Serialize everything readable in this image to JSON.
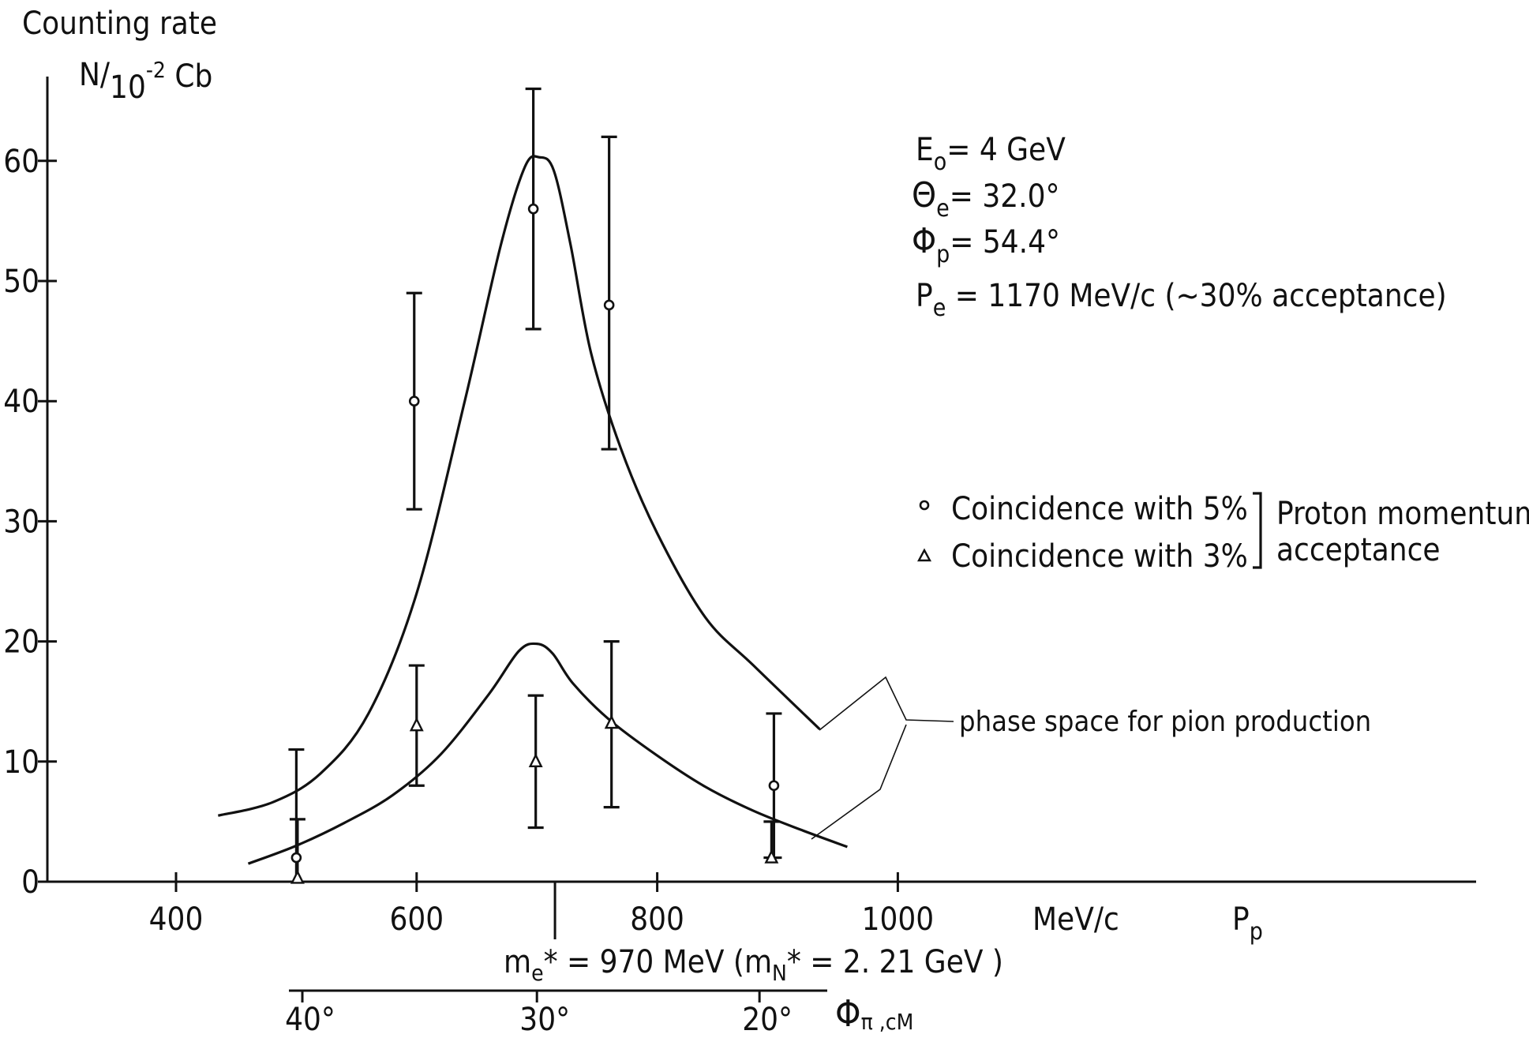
{
  "chart_data": {
    "type": "scatter",
    "y_title": "Counting rate",
    "y_unit_base": "N/",
    "y_unit_sub": "10",
    "y_unit_sup": "-2",
    "y_unit_suffix": " Cb",
    "x_unit": "MeV/c",
    "x_var": "P",
    "x_var_sub": "p",
    "xlim": [
      300,
      1280
    ],
    "ylim": [
      0,
      68
    ],
    "x_ticks": [
      {
        "value": 400,
        "label": "400"
      },
      {
        "value": 600,
        "label": "600"
      },
      {
        "value": 800,
        "label": "800"
      },
      {
        "value": 1000,
        "label": "1000"
      }
    ],
    "y_ticks": [
      {
        "value": 0,
        "label": "0"
      },
      {
        "value": 10,
        "label": "10"
      },
      {
        "value": 20,
        "label": "20"
      },
      {
        "value": 30,
        "label": "30"
      },
      {
        "value": 40,
        "label": "40"
      },
      {
        "value": 50,
        "label": "50"
      },
      {
        "value": 60,
        "label": "60"
      }
    ],
    "params": [
      {
        "sym": "E",
        "sub": "o",
        "text": "= 4 GeV"
      },
      {
        "sym": "Θ",
        "sub": "e",
        "text": "= 32.0°"
      },
      {
        "sym": "Φ",
        "sub": "p",
        "text": "= 54.4°"
      },
      {
        "sym": "P",
        "sub": "e",
        "text": " = 1170 MeV/c (~30% acceptance)"
      }
    ],
    "legend": {
      "entries": [
        {
          "marker": "circle",
          "label": "Coincidence with 5%"
        },
        {
          "marker": "triangle",
          "label": "Coincidence with 3%"
        }
      ],
      "group_label_line1": "Proton momentum",
      "group_label_line2": "acceptance"
    },
    "annotation": "phase space for pion production",
    "mass_label": "m",
    "mass_label_sub_e": "e",
    "mass_label_mid": "* = 970 MeV (m",
    "mass_label_sub_n": "N",
    "mass_label_end": "* = 2. 21 GeV )",
    "pion_axis": {
      "label_sym": "Φ",
      "label_sub": "π ,cM",
      "ticks": [
        {
          "x_value": 505,
          "label": "40°"
        },
        {
          "x_value": 700,
          "label": "30°"
        },
        {
          "x_value": 885,
          "label": "20°"
        }
      ]
    },
    "resonance_x": 715,
    "series": [
      {
        "name": "Coincidence with 5%",
        "marker": "circle",
        "points": [
          {
            "x": 500,
            "y": 2,
            "ylo": 0,
            "yhi": 11
          },
          {
            "x": 598,
            "y": 40,
            "ylo": 31,
            "yhi": 49
          },
          {
            "x": 697,
            "y": 56,
            "ylo": 46,
            "yhi": 66
          },
          {
            "x": 760,
            "y": 48,
            "ylo": 36,
            "yhi": 62
          },
          {
            "x": 897,
            "y": 8,
            "ylo": 2,
            "yhi": 14
          }
        ]
      },
      {
        "name": "Coincidence with 3%",
        "marker": "triangle",
        "points": [
          {
            "x": 501,
            "y": 0.3,
            "ylo": 0,
            "yhi": 5.2
          },
          {
            "x": 600,
            "y": 13,
            "ylo": 8,
            "yhi": 18
          },
          {
            "x": 699,
            "y": 10,
            "ylo": 4.5,
            "yhi": 15.5
          },
          {
            "x": 762,
            "y": 13.2,
            "ylo": 6.2,
            "yhi": 20
          },
          {
            "x": 895,
            "y": 2,
            "ylo": 2,
            "yhi": 5
          }
        ]
      }
    ],
    "curves": [
      {
        "name": "curve-5pct",
        "points": [
          [
            435,
            5.5
          ],
          [
            480,
            6.6
          ],
          [
            520,
            9
          ],
          [
            560,
            14
          ],
          [
            600,
            24
          ],
          [
            640,
            40
          ],
          [
            670,
            53
          ],
          [
            690,
            59.5
          ],
          [
            702,
            60.3
          ],
          [
            714,
            59.2
          ],
          [
            728,
            53
          ],
          [
            745,
            44
          ],
          [
            770,
            36
          ],
          [
            800,
            29
          ],
          [
            840,
            22
          ],
          [
            880,
            18
          ],
          [
            935,
            12.7
          ]
        ]
      },
      {
        "name": "curve-3pct",
        "points": [
          [
            460,
            1.5
          ],
          [
            500,
            3
          ],
          [
            540,
            4.9
          ],
          [
            580,
            7.2
          ],
          [
            620,
            10.6
          ],
          [
            660,
            15.6
          ],
          [
            685,
            19.2
          ],
          [
            700,
            19.8
          ],
          [
            713,
            19
          ],
          [
            730,
            16.5
          ],
          [
            760,
            13.5
          ],
          [
            800,
            10.5
          ],
          [
            840,
            7.9
          ],
          [
            880,
            5.9
          ],
          [
            920,
            4.3
          ],
          [
            958,
            2.9
          ]
        ]
      }
    ]
  }
}
